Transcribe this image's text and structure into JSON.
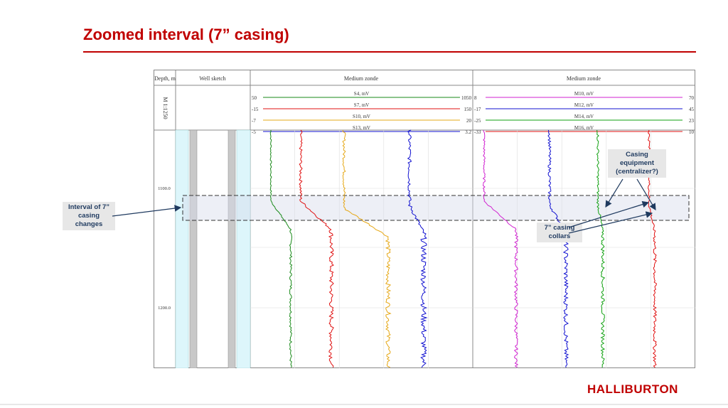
{
  "slide": {
    "title": "Zoomed interval (7” casing)",
    "logo": "HALLIBURTON",
    "accent_color": "#c00000"
  },
  "log_header": {
    "depth_col": "Depth, m",
    "scale": "M 1:1250",
    "well_sketch": "Well sketch",
    "track1_title": "Medium zonde",
    "track2_title": "Medium zonde"
  },
  "curves": {
    "track1": [
      {
        "name": "S4, mV",
        "min": "50",
        "max": "1050",
        "color": "#1a8a1a"
      },
      {
        "name": "S7, mV",
        "min": "-15",
        "max": "150",
        "color": "#e01010"
      },
      {
        "name": "S10, mV",
        "min": "-7",
        "max": "20",
        "color": "#e6a817"
      },
      {
        "name": "S13, mV",
        "min": "-5",
        "max": "3.2",
        "color": "#1010d0"
      }
    ],
    "track2": [
      {
        "name": "M10, mV",
        "min": "8",
        "max": "70",
        "color": "#d020d0"
      },
      {
        "name": "M12, mV",
        "min": "-17",
        "max": "45",
        "color": "#1010d0"
      },
      {
        "name": "M14, mV",
        "min": "-25",
        "max": "23",
        "color": "#10a010"
      },
      {
        "name": "M16, mV",
        "min": "-33",
        "max": "10",
        "color": "#e01010"
      }
    ]
  },
  "depth_labels": [
    "1100.0",
    "1200.0"
  ],
  "callouts": {
    "interval": "Interval of 7” casing changes",
    "equipment": "Casing equipment (centralizer?)",
    "collars": "7” casing collars"
  }
}
